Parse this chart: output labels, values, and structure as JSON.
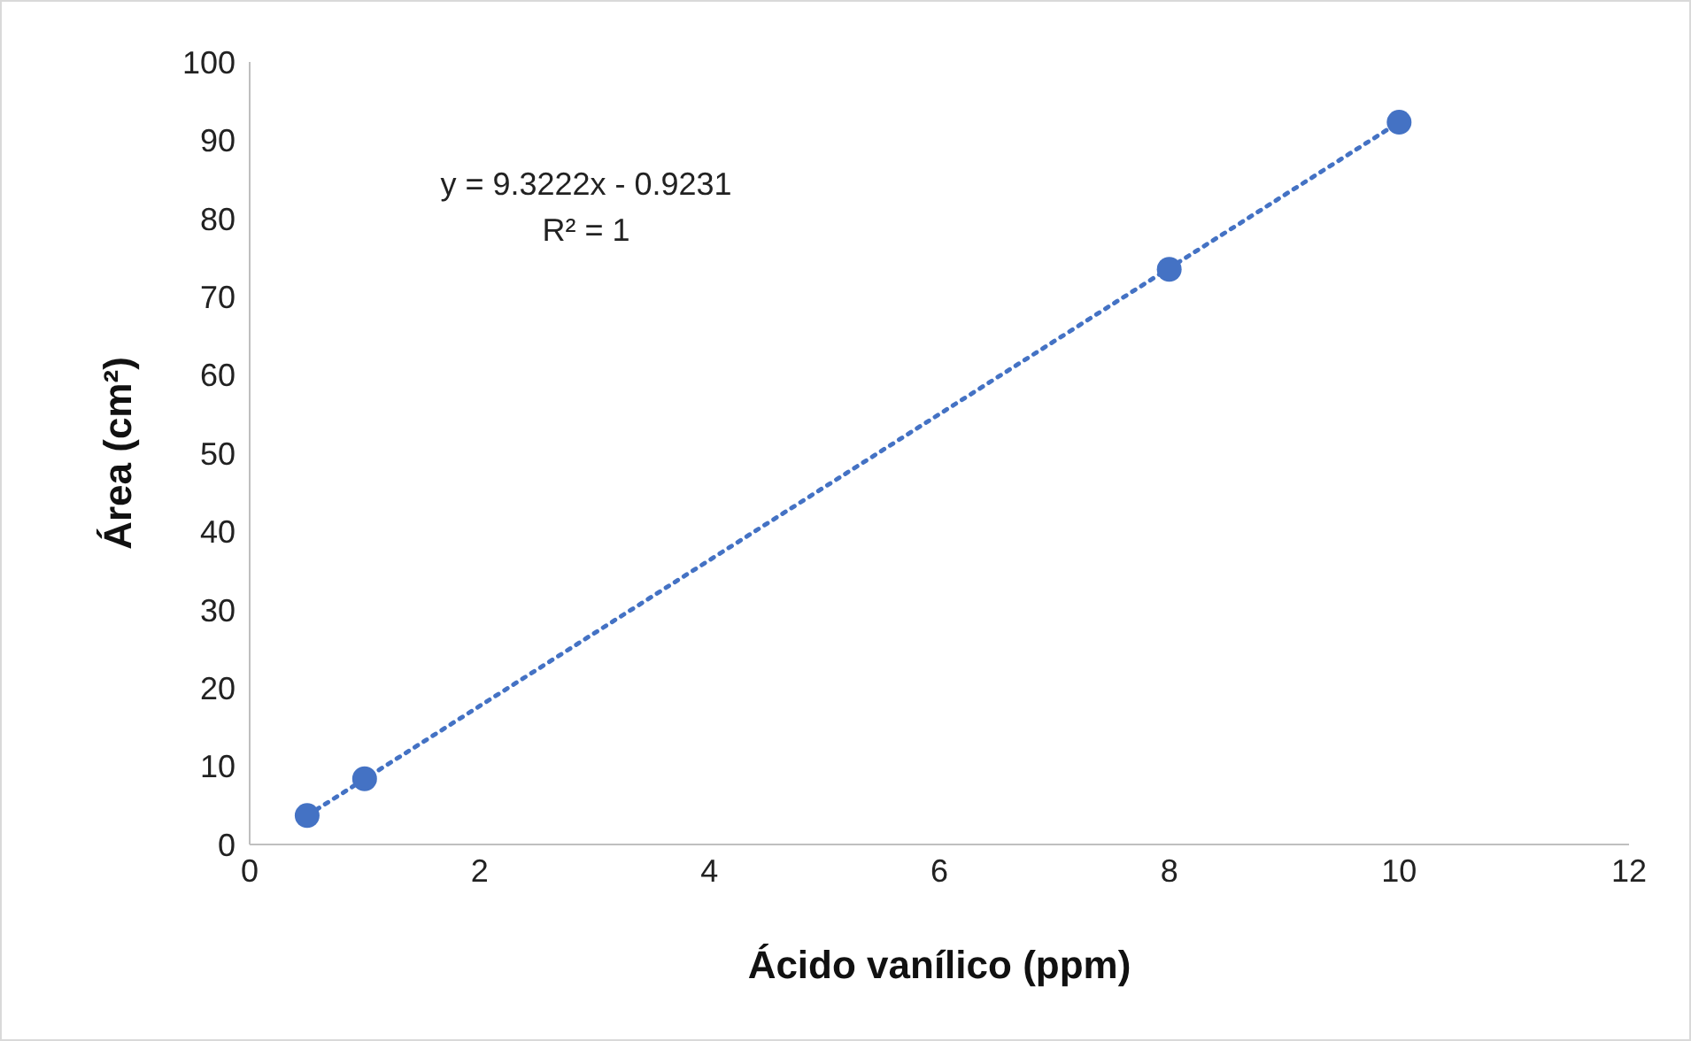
{
  "chart_data": {
    "type": "scatter",
    "xlabel": "Ácido vanílico (ppm)",
    "ylabel": "Área (cm²)",
    "annotations": [
      "y = 9.3222x - 0.9231",
      "R² = 1"
    ],
    "xlim": [
      0,
      12
    ],
    "xticks": [
      0,
      2,
      4,
      6,
      8,
      10,
      12
    ],
    "ylim": [
      0,
      100
    ],
    "yticks": [
      0,
      10,
      20,
      30,
      40,
      50,
      60,
      70,
      80,
      90,
      100
    ],
    "grid": false,
    "series": [
      {
        "color": "#4472c4",
        "marker": "circle",
        "x": [
          0.5,
          1,
          8,
          10
        ],
        "values": [
          3.7,
          8.4,
          73.5,
          92.3
        ]
      },
      {
        "type": "line",
        "color": "#4472c4",
        "line_style": "dotted",
        "x": [
          0.5,
          10
        ],
        "values": [
          3.7,
          92.3
        ]
      }
    ]
  }
}
